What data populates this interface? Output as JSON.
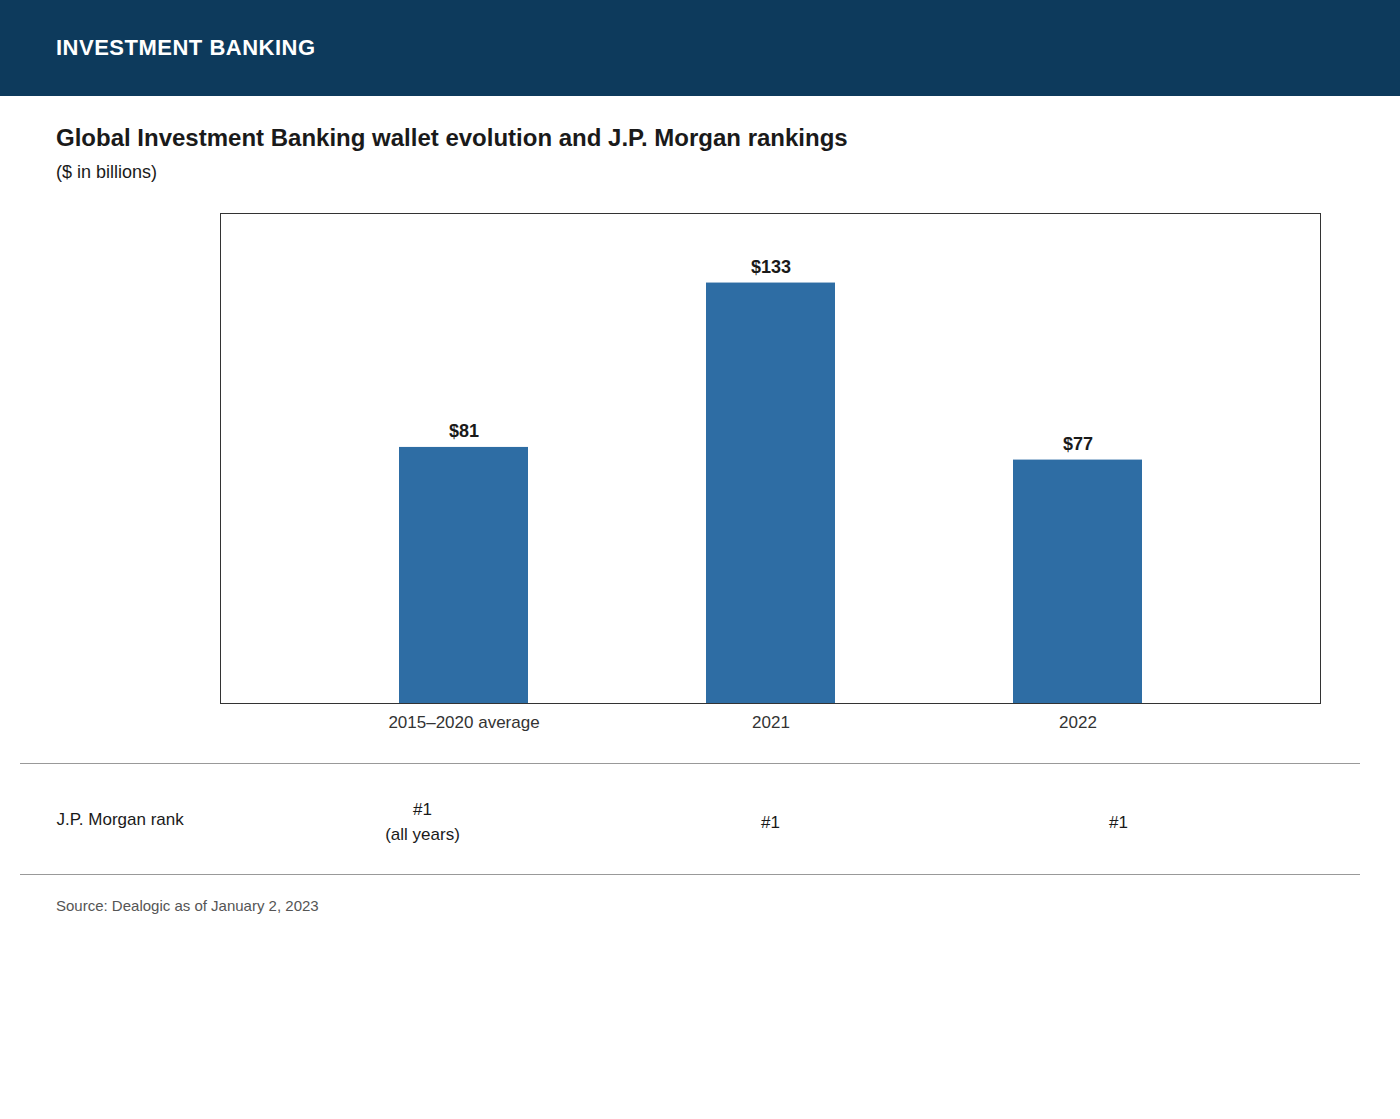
{
  "chart_data": {
    "type": "bar",
    "header": "INVESTMENT BANKING",
    "title": "Global Investment Banking wallet evolution and J.P. Morgan rankings",
    "subtitle": "($ in billions)",
    "categories": [
      "2015–2020 average",
      "2021",
      "2022"
    ],
    "values": [
      81,
      133,
      77
    ],
    "value_labels": [
      "$81",
      "$133",
      "$77"
    ],
    "data_labels": true,
    "color": "#2e6da4",
    "ylim": [
      0,
      155
    ],
    "tick_labels": "x",
    "grid": false,
    "annotations": [
      {
        "text": "J.P. Morgan rank"
      },
      {
        "category": "2015–2020 average",
        "text": "#1\n(all years)"
      },
      {
        "category": "2021",
        "text": "#1"
      },
      {
        "category": "2022",
        "text": "#1"
      }
    ],
    "source": "Source: Dealogic as of January 2, 2023"
  }
}
